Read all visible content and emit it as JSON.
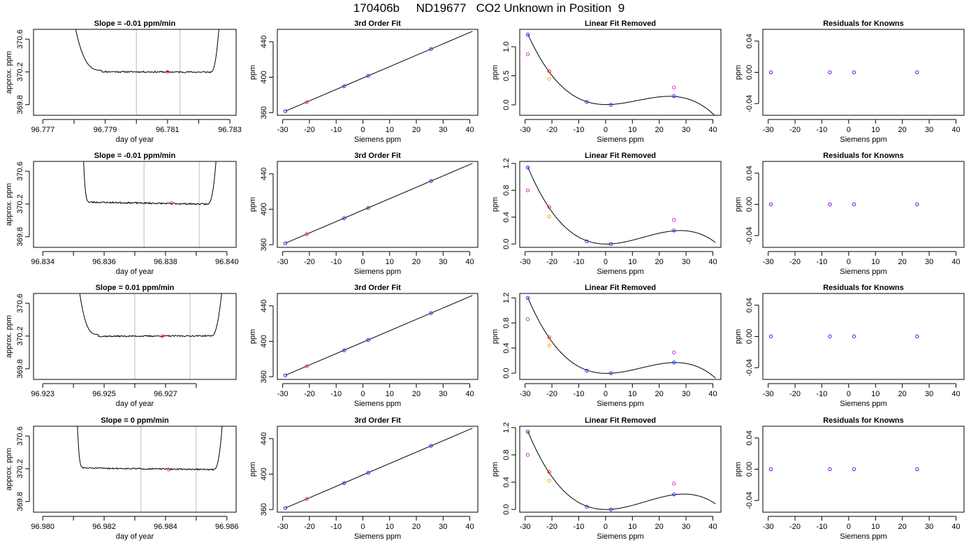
{
  "page_title": "170406b     ND19677   CO2 Unknown in Position  9",
  "colors": {
    "line": "#000000",
    "marker_blue": "#2a2aff",
    "marker_red": "#ff2a2a",
    "marker_orange": "#ffa500",
    "marker_magenta": "#e02ae0",
    "marker_purple": "#7a00ff",
    "vline_gray": "#bdbdbd"
  },
  "chart_data": [
    {
      "type": "line",
      "row": 0,
      "panel": "trace",
      "title": "Slope =  -0.01  ppm/min",
      "xlabel": "day of year",
      "ylabel": "approx. ppm",
      "xlim": [
        96.7767,
        96.7832
      ],
      "ylim": [
        369.67,
        370.72
      ],
      "x_ticks": [
        96.777,
        96.778,
        96.779,
        96.78,
        96.781,
        96.782,
        96.783
      ],
      "x_tick_labels": [
        "96.777",
        "",
        "96.779",
        "",
        "96.781",
        "",
        "96.783"
      ],
      "y_ticks": [
        369.8,
        370.2,
        370.6
      ],
      "y_tick_labels": [
        "369.8",
        "370.2",
        "370.6"
      ],
      "x_start": 96.7789,
      "x_end": 96.7824,
      "y_level": 370.2,
      "noise": 0.009,
      "trend": 0.005,
      "seed": 11,
      "x_rise_left": 96.7779,
      "x_rise_right": 96.7827,
      "vlines": [
        96.78,
        96.7814
      ],
      "highlight": {
        "x": 96.781,
        "y": 370.2
      }
    },
    {
      "type": "line",
      "row": 1,
      "panel": "trace",
      "title": "Slope =  -0.01  ppm/min",
      "xlabel": "day of year",
      "ylabel": "approx. ppm",
      "xlim": [
        96.8337,
        96.8403
      ],
      "ylim": [
        369.67,
        370.72
      ],
      "x_ticks": [
        96.834,
        96.835,
        96.836,
        96.837,
        96.838,
        96.839,
        96.84
      ],
      "x_tick_labels": [
        "96.834",
        "",
        "96.836",
        "",
        "96.838",
        "",
        "96.840"
      ],
      "y_ticks": [
        369.8,
        370.2,
        370.6
      ],
      "y_tick_labels": [
        "369.8",
        "370.2",
        "370.6"
      ],
      "x_start": 96.8355,
      "x_end": 96.8394,
      "y_level": 370.21,
      "noise": 0.009,
      "trend": 0.025,
      "seed": 23,
      "x_rise_left": 96.8353,
      "x_rise_right": 96.8397,
      "vlines": [
        96.8373,
        96.8391
      ],
      "highlight": {
        "x": 96.8382,
        "y": 370.21
      }
    },
    {
      "type": "line",
      "row": 2,
      "panel": "trace",
      "title": "Slope =  0.01  ppm/min",
      "xlabel": "day of year",
      "ylabel": "approx. ppm",
      "xlim": [
        96.9227,
        96.9293
      ],
      "ylim": [
        369.67,
        370.72
      ],
      "x_ticks": [
        96.923,
        96.924,
        96.925,
        96.926,
        96.927,
        96.928
      ],
      "x_tick_labels": [
        "96.923",
        "",
        "96.925",
        "",
        "96.927",
        ""
      ],
      "y_ticks": [
        369.8,
        370.2,
        370.6
      ],
      "y_tick_labels": [
        "369.8",
        "370.2",
        "370.6"
      ],
      "x_start": 96.9248,
      "x_end": 96.9285,
      "y_level": 370.2,
      "noise": 0.008,
      "trend": -0.005,
      "seed": 37,
      "x_rise_left": 96.9241,
      "x_rise_right": 96.9289,
      "vlines": [
        96.926,
        96.9278
      ],
      "highlight": {
        "x": 96.9269,
        "y": 370.2
      }
    },
    {
      "type": "line",
      "row": 3,
      "panel": "trace",
      "title": "Slope =  0  ppm/min",
      "xlabel": "day of year",
      "ylabel": "approx. ppm",
      "xlim": [
        96.9797,
        96.9863
      ],
      "ylim": [
        369.67,
        370.72
      ],
      "x_ticks": [
        96.98,
        96.981,
        96.982,
        96.983,
        96.984,
        96.985,
        96.986
      ],
      "x_tick_labels": [
        "96.980",
        "",
        "96.982",
        "",
        "96.984",
        "",
        "96.986"
      ],
      "y_ticks": [
        369.8,
        370.2,
        370.6
      ],
      "y_tick_labels": [
        "369.8",
        "370.2",
        "370.6"
      ],
      "x_start": 96.9813,
      "x_end": 96.9856,
      "y_level": 370.2,
      "noise": 0.008,
      "trend": 0.02,
      "seed": 51,
      "x_rise_left": 96.9811,
      "x_rise_right": 96.9859,
      "vlines": [
        96.9832,
        96.985
      ],
      "highlight": {
        "x": 96.9841,
        "y": 370.19
      }
    },
    {
      "type": "scatter",
      "row": 0,
      "panel": "fit",
      "title": "3rd Order Fit",
      "xlabel": "Siemens ppm",
      "ylabel": "ppm",
      "xlim": [
        -32,
        43
      ],
      "ylim": [
        357,
        454
      ],
      "x_ticks": [
        -30,
        -20,
        -10,
        0,
        10,
        20,
        30,
        40
      ],
      "y_ticks": [
        360,
        400,
        440
      ],
      "line": {
        "x": [
          -29,
          41
        ],
        "y": [
          361.7,
          451.8
        ]
      },
      "points": [
        {
          "x": -29,
          "y": 361.7,
          "color": "blue"
        },
        {
          "x": -21,
          "y": 371.9,
          "color": "red"
        },
        {
          "x": -7,
          "y": 389.9,
          "color": "blue"
        },
        {
          "x": 2,
          "y": 401.5,
          "color": "blue"
        },
        {
          "x": 25.5,
          "y": 431.8,
          "color": "blue"
        }
      ]
    },
    {
      "type": "scatter",
      "row": 1,
      "panel": "fit",
      "title": "3rd Order Fit",
      "xlabel": "Siemens ppm",
      "ylabel": "ppm",
      "xlim": [
        -32,
        43
      ],
      "ylim": [
        357,
        454
      ],
      "x_ticks": [
        -30,
        -20,
        -10,
        0,
        10,
        20,
        30,
        40
      ],
      "y_ticks": [
        360,
        400,
        440
      ],
      "line": {
        "x": [
          -29,
          41
        ],
        "y": [
          361.7,
          451.8
        ]
      },
      "points": [
        {
          "x": -29,
          "y": 361.7,
          "color": "blue"
        },
        {
          "x": -21,
          "y": 371.9,
          "color": "red"
        },
        {
          "x": -7,
          "y": 389.9,
          "color": "blue"
        },
        {
          "x": 2,
          "y": 401.5,
          "color": "blue"
        },
        {
          "x": 25.5,
          "y": 431.8,
          "color": "blue"
        }
      ]
    },
    {
      "type": "scatter",
      "row": 2,
      "panel": "fit",
      "title": "3rd Order Fit",
      "xlabel": "Siemens ppm",
      "ylabel": "ppm",
      "xlim": [
        -32,
        43
      ],
      "ylim": [
        357,
        454
      ],
      "x_ticks": [
        -30,
        -20,
        -10,
        0,
        10,
        20,
        30,
        40
      ],
      "y_ticks": [
        360,
        400,
        440
      ],
      "line": {
        "x": [
          -29,
          41
        ],
        "y": [
          361.7,
          451.8
        ]
      },
      "points": [
        {
          "x": -29,
          "y": 361.7,
          "color": "blue"
        },
        {
          "x": -21,
          "y": 371.9,
          "color": "red"
        },
        {
          "x": -7,
          "y": 389.9,
          "color": "blue"
        },
        {
          "x": 2,
          "y": 401.5,
          "color": "blue"
        },
        {
          "x": 25.5,
          "y": 431.8,
          "color": "blue"
        }
      ]
    },
    {
      "type": "scatter",
      "row": 3,
      "panel": "fit",
      "title": "3rd Order Fit",
      "xlabel": "Siemens ppm",
      "ylabel": "ppm",
      "xlim": [
        -32,
        43
      ],
      "ylim": [
        357,
        454
      ],
      "x_ticks": [
        -30,
        -20,
        -10,
        0,
        10,
        20,
        30,
        40
      ],
      "y_ticks": [
        360,
        400,
        440
      ],
      "line": {
        "x": [
          -29,
          41
        ],
        "y": [
          361.7,
          451.8
        ]
      },
      "points": [
        {
          "x": -29,
          "y": 361.7,
          "color": "blue"
        },
        {
          "x": -21,
          "y": 371.9,
          "color": "red"
        },
        {
          "x": -7,
          "y": 389.9,
          "color": "blue"
        },
        {
          "x": 2,
          "y": 401.5,
          "color": "blue"
        },
        {
          "x": 25.5,
          "y": 431.8,
          "color": "blue"
        }
      ]
    },
    {
      "type": "scatter",
      "row": 0,
      "panel": "linear_removed",
      "title": "Linear Fit Removed",
      "xlabel": "Siemens ppm",
      "ylabel": "ppm",
      "xlim": [
        -32,
        43
      ],
      "ylim": [
        -0.18,
        1.3
      ],
      "x_ticks": [
        -30,
        -20,
        -10,
        0,
        10,
        20,
        30,
        40
      ],
      "y_ticks": [
        0.0,
        0.5,
        1.0
      ],
      "y_tick_labels": [
        "0.0",
        "0.5",
        "1.0"
      ],
      "curve": {
        "x0": -29,
        "x1": 41,
        "cubic": {
          "t1": 1.0,
          "t2": 1.5,
          "t3": 0.5
        }
      },
      "cubic_anchor_points": [
        [
          -29,
          1.21
        ],
        [
          -21,
          0.58
        ],
        [
          -7,
          0.05
        ],
        [
          2,
          0.0
        ],
        [
          25.5,
          0.15
        ],
        [
          41,
          -0.2
        ]
      ],
      "points": [
        {
          "x": -29,
          "y": 1.21,
          "color": "blue"
        },
        {
          "x": -29,
          "y": 0.87,
          "color": "magenta"
        },
        {
          "x": -21,
          "y": 0.58,
          "color": "red"
        },
        {
          "x": -21,
          "y": 0.45,
          "color": "orange"
        },
        {
          "x": -7,
          "y": 0.05,
          "color": "blue"
        },
        {
          "x": 2,
          "y": 0.0,
          "color": "blue"
        },
        {
          "x": 25.5,
          "y": 0.15,
          "color": "blue"
        },
        {
          "x": 25.5,
          "y": 0.3,
          "color": "magenta"
        }
      ]
    },
    {
      "type": "scatter",
      "row": 1,
      "panel": "linear_removed",
      "title": "Linear Fit Removed",
      "xlabel": "Siemens ppm",
      "ylabel": "ppm",
      "xlim": [
        -32,
        43
      ],
      "ylim": [
        -0.05,
        1.23
      ],
      "x_ticks": [
        -30,
        -20,
        -10,
        0,
        10,
        20,
        30,
        40
      ],
      "y_ticks": [
        0.0,
        0.4,
        0.8,
        1.2
      ],
      "y_tick_labels": [
        "0.0",
        "0.4",
        "0.8",
        "1.2"
      ],
      "cubic_anchor_points": [
        [
          -29,
          1.14
        ],
        [
          -21,
          0.55
        ],
        [
          -7,
          0.04
        ],
        [
          2,
          0.0
        ],
        [
          25.5,
          0.2
        ],
        [
          41,
          0.02
        ]
      ],
      "points": [
        {
          "x": -29,
          "y": 1.14,
          "color": "blue"
        },
        {
          "x": -29,
          "y": 0.8,
          "color": "magenta"
        },
        {
          "x": -21,
          "y": 0.55,
          "color": "red"
        },
        {
          "x": -21,
          "y": 0.41,
          "color": "orange"
        },
        {
          "x": -7,
          "y": 0.04,
          "color": "blue"
        },
        {
          "x": 2,
          "y": 0.0,
          "color": "blue"
        },
        {
          "x": 25.5,
          "y": 0.2,
          "color": "blue"
        },
        {
          "x": 25.5,
          "y": 0.36,
          "color": "magenta"
        }
      ]
    },
    {
      "type": "scatter",
      "row": 2,
      "panel": "linear_removed",
      "title": "Linear Fit Removed",
      "xlabel": "Siemens ppm",
      "ylabel": "ppm",
      "xlim": [
        -32,
        43
      ],
      "ylim": [
        -0.1,
        1.27
      ],
      "x_ticks": [
        -30,
        -20,
        -10,
        0,
        10,
        20,
        30,
        40
      ],
      "y_ticks": [
        0.0,
        0.4,
        0.8,
        1.2
      ],
      "y_tick_labels": [
        "0.0",
        "0.4",
        "0.8",
        "1.2"
      ],
      "cubic_anchor_points": [
        [
          -29,
          1.2
        ],
        [
          -21,
          0.57
        ],
        [
          -7,
          0.04
        ],
        [
          2,
          0.0
        ],
        [
          25.5,
          0.17
        ],
        [
          41,
          -0.08
        ]
      ],
      "points": [
        {
          "x": -29,
          "y": 1.2,
          "color": "blue"
        },
        {
          "x": -29,
          "y": 0.86,
          "color": "magenta"
        },
        {
          "x": -21,
          "y": 0.57,
          "color": "red"
        },
        {
          "x": -21,
          "y": 0.44,
          "color": "orange"
        },
        {
          "x": -7,
          "y": 0.04,
          "color": "blue"
        },
        {
          "x": 2,
          "y": 0.0,
          "color": "blue"
        },
        {
          "x": 25.5,
          "y": 0.17,
          "color": "blue"
        },
        {
          "x": 25.5,
          "y": 0.33,
          "color": "magenta"
        }
      ]
    },
    {
      "type": "scatter",
      "row": 3,
      "panel": "linear_removed",
      "title": "Linear Fit Removed",
      "xlabel": "Siemens ppm",
      "ylabel": "ppm",
      "xlim": [
        -32,
        43
      ],
      "ylim": [
        -0.04,
        1.22
      ],
      "x_ticks": [
        -30,
        -20,
        -10,
        0,
        10,
        20,
        30,
        40
      ],
      "y_ticks": [
        0.0,
        0.4,
        0.8,
        1.2
      ],
      "y_tick_labels": [
        "0.0",
        "0.4",
        "0.8",
        "1.2"
      ],
      "cubic_anchor_points": [
        [
          -29,
          1.14
        ],
        [
          -21,
          0.55
        ],
        [
          -7,
          0.04
        ],
        [
          2,
          0.0
        ],
        [
          25.5,
          0.22
        ],
        [
          41,
          0.08
        ]
      ],
      "points": [
        {
          "x": -29,
          "y": 1.14,
          "color": "blue"
        },
        {
          "x": -29,
          "y": 0.8,
          "color": "magenta"
        },
        {
          "x": -21,
          "y": 0.55,
          "color": "red"
        },
        {
          "x": -21,
          "y": 0.42,
          "color": "orange"
        },
        {
          "x": -7,
          "y": 0.04,
          "color": "blue"
        },
        {
          "x": 2,
          "y": 0.0,
          "color": "blue"
        },
        {
          "x": 25.5,
          "y": 0.22,
          "color": "blue"
        },
        {
          "x": 25.5,
          "y": 0.38,
          "color": "magenta"
        }
      ]
    },
    {
      "type": "scatter",
      "row": 0,
      "panel": "residuals",
      "title": "Residuals for Knowns",
      "xlabel": "Siemens ppm",
      "ylabel": "ppm",
      "xlim": [
        -32,
        43
      ],
      "ylim": [
        -0.055,
        0.055
      ],
      "x_ticks": [
        -30,
        -20,
        -10,
        0,
        10,
        20,
        30,
        40
      ],
      "y_ticks": [
        -0.04,
        0.0,
        0.04
      ],
      "y_tick_labels": [
        "-0.04",
        "0.00",
        "0.04"
      ],
      "points": [
        {
          "x": -29,
          "y": 0,
          "color": "purple"
        },
        {
          "x": -7,
          "y": 0,
          "color": "purple"
        },
        {
          "x": 2,
          "y": 0,
          "color": "purple"
        },
        {
          "x": 25.5,
          "y": 0,
          "color": "purple"
        }
      ]
    },
    {
      "type": "scatter",
      "row": 1,
      "panel": "residuals",
      "title": "Residuals for Knowns",
      "xlabel": "Siemens ppm",
      "ylabel": "ppm",
      "xlim": [
        -32,
        43
      ],
      "ylim": [
        -0.055,
        0.055
      ],
      "x_ticks": [
        -30,
        -20,
        -10,
        0,
        10,
        20,
        30,
        40
      ],
      "y_ticks": [
        -0.04,
        0.0,
        0.04
      ],
      "y_tick_labels": [
        "-0.04",
        "0.00",
        "0.04"
      ],
      "points": [
        {
          "x": -29,
          "y": 0,
          "color": "purple"
        },
        {
          "x": -7,
          "y": 0,
          "color": "purple"
        },
        {
          "x": 2,
          "y": 0,
          "color": "purple"
        },
        {
          "x": 25.5,
          "y": 0,
          "color": "purple"
        }
      ]
    },
    {
      "type": "scatter",
      "row": 2,
      "panel": "residuals",
      "title": "Residuals for Knowns",
      "xlabel": "Siemens ppm",
      "ylabel": "ppm",
      "xlim": [
        -32,
        43
      ],
      "ylim": [
        -0.055,
        0.055
      ],
      "x_ticks": [
        -30,
        -20,
        -10,
        0,
        10,
        20,
        30,
        40
      ],
      "y_ticks": [
        -0.04,
        0.0,
        0.04
      ],
      "y_tick_labels": [
        "-0.04",
        "0.00",
        "0.04"
      ],
      "points": [
        {
          "x": -29,
          "y": 0,
          "color": "purple"
        },
        {
          "x": -7,
          "y": 0,
          "color": "purple"
        },
        {
          "x": 2,
          "y": 0,
          "color": "purple"
        },
        {
          "x": 25.5,
          "y": 0,
          "color": "purple"
        }
      ]
    },
    {
      "type": "scatter",
      "row": 3,
      "panel": "residuals",
      "title": "Residuals for Knowns",
      "xlabel": "Siemens ppm",
      "ylabel": "ppm",
      "xlim": [
        -32,
        43
      ],
      "ylim": [
        -0.055,
        0.055
      ],
      "x_ticks": [
        -30,
        -20,
        -10,
        0,
        10,
        20,
        30,
        40
      ],
      "y_ticks": [
        -0.04,
        0.0,
        0.04
      ],
      "y_tick_labels": [
        "-0.04",
        "0.00",
        "0.04"
      ],
      "points": [
        {
          "x": -29,
          "y": 0,
          "color": "purple"
        },
        {
          "x": -7,
          "y": 0,
          "color": "purple"
        },
        {
          "x": 2,
          "y": 0,
          "color": "purple"
        },
        {
          "x": 25.5,
          "y": 0,
          "color": "purple"
        }
      ]
    }
  ]
}
